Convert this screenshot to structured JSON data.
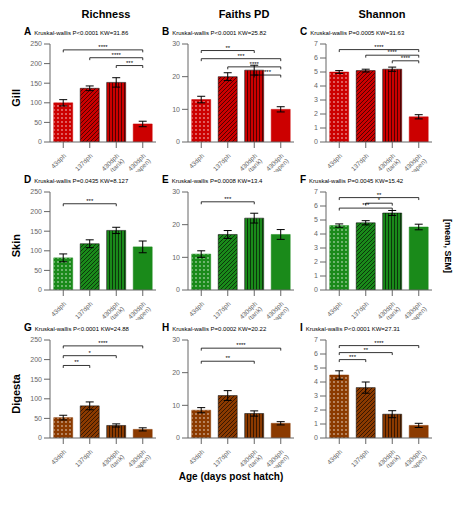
{
  "chart_data": [
    {
      "type": "bar",
      "title": "Richness",
      "ylabel": "Gill",
      "annotations": [
        "A",
        "Kruskal-wallis P<0.0001 KW=31.86"
      ],
      "categories": [
        "43dph",
        "137dph",
        "430dph\n(tank)",
        "430dph\n(seapen)"
      ],
      "values": [
        100,
        137,
        152,
        46
      ],
      "errors": [
        8,
        6,
        12,
        7
      ],
      "color": "#cc0000",
      "ylim": [
        0,
        250
      ],
      "yticks": [
        0,
        50,
        100,
        150,
        200,
        250
      ],
      "significance": [
        {
          "between": [
            "43dph",
            "430dph\n(seapen)"
          ],
          "label": "****",
          "y": 235
        },
        {
          "between": [
            "137dph",
            "430dph\n(seapen)"
          ],
          "label": "****",
          "y": 215
        },
        {
          "between": [
            "430dph\n(tank)",
            "430dph\n(seapen)"
          ],
          "label": "***",
          "y": 195
        }
      ]
    },
    {
      "type": "bar",
      "title": "Faiths PD",
      "annotations": [
        "B",
        "Kruskal-wallis P<0.0001 KW=25.82"
      ],
      "categories": [
        "43dph",
        "137dph",
        "430dph\n(tank)",
        "430dph\n(seapen)"
      ],
      "values": [
        13,
        20,
        22,
        10
      ],
      "errors": [
        1.0,
        1.2,
        1.5,
        0.8
      ],
      "color": "#cc0000",
      "ylim": [
        0,
        30
      ],
      "yticks": [
        0,
        10,
        20,
        30
      ],
      "significance": [
        {
          "between": [
            "43dph",
            "430dph\n(tank)"
          ],
          "label": "**",
          "y": 28.0
        },
        {
          "between": [
            "43dph",
            "430dph\n(seapen)"
          ],
          "label": "***",
          "y": 25.5
        },
        {
          "between": [
            "137dph",
            "430dph\n(seapen)"
          ],
          "label": "****",
          "y": 23.0
        },
        {
          "between": [
            "430dph\n(tank)",
            "430dph\n(seapen)"
          ],
          "label": "***",
          "y": 20.5
        }
      ]
    },
    {
      "type": "bar",
      "title": "Shannon",
      "annotations": [
        "C",
        "Kruskal-wallis P=0.0005 KW=31.63"
      ],
      "categories": [
        "43dph",
        "137dph",
        "430dph\n(tank)",
        "430dph\n(seapen)"
      ],
      "values": [
        5.0,
        5.1,
        5.2,
        1.8
      ],
      "errors": [
        0.1,
        0.1,
        0.15,
        0.15
      ],
      "color": "#cc0000",
      "ylim": [
        0,
        7
      ],
      "yticks": [
        0,
        1,
        2,
        3,
        4,
        5,
        6,
        7
      ],
      "significance": [
        {
          "between": [
            "43dph",
            "430dph\n(seapen)"
          ],
          "label": "****",
          "y": 6.6
        },
        {
          "between": [
            "137dph",
            "430dph\n(seapen)"
          ],
          "label": "****",
          "y": 6.2
        },
        {
          "between": [
            "430dph\n(tank)",
            "430dph\n(seapen)"
          ],
          "label": "****",
          "y": 5.8
        }
      ]
    },
    {
      "type": "bar",
      "ylabel": "Skin",
      "annotations": [
        "D",
        "Kruskal-wallis P=0.0435 KW=8.127"
      ],
      "categories": [
        "43dph",
        "137dph",
        "430dph\n(tank)",
        "430dph\n(seapen)"
      ],
      "values": [
        82,
        118,
        152,
        110
      ],
      "errors": [
        10,
        10,
        8,
        15
      ],
      "color": "#1a8a1a",
      "ylim": [
        0,
        250
      ],
      "yticks": [
        0,
        50,
        100,
        150,
        200,
        250
      ],
      "significance": [
        {
          "between": [
            "43dph",
            "430dph\n(tank)"
          ],
          "label": "***",
          "y": 220
        }
      ]
    },
    {
      "type": "bar",
      "annotations": [
        "E",
        "Kruskal-wallis P=0.0008 KW=13.4"
      ],
      "categories": [
        "43dph",
        "137dph",
        "430dph\n(tank)",
        "430dph\n(seapen)"
      ],
      "values": [
        11,
        17,
        22,
        17
      ],
      "errors": [
        1.0,
        1.2,
        1.5,
        1.5
      ],
      "color": "#1a8a1a",
      "ylim": [
        0,
        30
      ],
      "yticks": [
        0,
        10,
        20,
        30
      ],
      "significance": [
        {
          "between": [
            "43dph",
            "430dph\n(tank)"
          ],
          "label": "***",
          "y": 27
        }
      ]
    },
    {
      "type": "bar",
      "annotations": [
        "F",
        "Kruskal-wallis P=0.0045 KW=15.42"
      ],
      "categories": [
        "43dph",
        "137dph",
        "430dph\n(tank)",
        "430dph\n(seapen)"
      ],
      "values": [
        4.6,
        4.8,
        5.5,
        4.5
      ],
      "errors": [
        0.12,
        0.15,
        0.18,
        0.2
      ],
      "color": "#1a8a1a",
      "ylim": [
        0,
        7
      ],
      "yticks": [
        0,
        1,
        2,
        3,
        4,
        5,
        6,
        7
      ],
      "significance": [
        {
          "between": [
            "43dph",
            "430dph\n(seapen)"
          ],
          "label": "**",
          "y": 6.6
        },
        {
          "between": [
            "137dph",
            "430dph\n(tank)"
          ],
          "label": "*",
          "y": 6.2
        },
        {
          "between": [
            "43dph",
            "430dph\n(tank)"
          ],
          "label": "***",
          "y": 5.85
        }
      ]
    },
    {
      "type": "bar",
      "ylabel": "Digesta",
      "annotations": [
        "G",
        "Kruskal-wallis P<0.0001 KW=24.88"
      ],
      "categories": [
        "43dph",
        "137dph",
        "430dph\n(tank)",
        "430dph\n(seapen)"
      ],
      "values": [
        52,
        82,
        32,
        22
      ],
      "errors": [
        6,
        10,
        4,
        4
      ],
      "color": "#8b3a00",
      "ylim": [
        0,
        250
      ],
      "yticks": [
        0,
        50,
        100,
        150,
        200,
        250
      ],
      "significance": [
        {
          "between": [
            "43dph",
            "430dph\n(seapen)"
          ],
          "label": "****",
          "y": 235
        },
        {
          "between": [
            "43dph",
            "430dph\n(tank)"
          ],
          "label": "*",
          "y": 210
        },
        {
          "between": [
            "43dph",
            "137dph"
          ],
          "label": "**",
          "y": 185
        }
      ]
    },
    {
      "type": "bar",
      "annotations": [
        "H",
        "Kruskal-wallis P=0.0002 KW=20.22"
      ],
      "categories": [
        "43dph",
        "137dph",
        "430dph\n(tank)",
        "430dph\n(seapen)"
      ],
      "values": [
        8.5,
        13,
        7.5,
        4.5
      ],
      "errors": [
        0.8,
        1.5,
        0.8,
        0.5
      ],
      "color": "#8b3a00",
      "ylim": [
        0,
        30
      ],
      "yticks": [
        0,
        10,
        20,
        30
      ],
      "significance": [
        {
          "between": [
            "43dph",
            "430dph\n(seapen)"
          ],
          "label": "****",
          "y": 27.5
        },
        {
          "between": [
            "43dph",
            "430dph\n(tank)"
          ],
          "label": "**",
          "y": 23.5
        }
      ]
    },
    {
      "type": "bar",
      "annotations": [
        "I",
        "Kruskal-wallis P<0.0001 KW=27.31"
      ],
      "categories": [
        "43dph",
        "137dph",
        "430dph\n(tank)",
        "430dph\n(seapen)"
      ],
      "values": [
        4.5,
        3.6,
        1.7,
        0.9
      ],
      "errors": [
        0.3,
        0.4,
        0.25,
        0.15
      ],
      "color": "#8b3a00",
      "ylim": [
        0,
        7
      ],
      "yticks": [
        0,
        1,
        2,
        3,
        4,
        5,
        6,
        7
      ],
      "significance": [
        {
          "between": [
            "43dph",
            "430dph\n(seapen)"
          ],
          "label": "****",
          "y": 6.6
        },
        {
          "between": [
            "43dph",
            "430dph\n(tank)"
          ],
          "label": "**",
          "y": 6.1
        },
        {
          "between": [
            "43dph",
            "137dph"
          ],
          "label": "***",
          "y": 5.6
        }
      ]
    }
  ],
  "xlabel": "Age (days post hatch)",
  "ylabel": "[mean, SEM]"
}
